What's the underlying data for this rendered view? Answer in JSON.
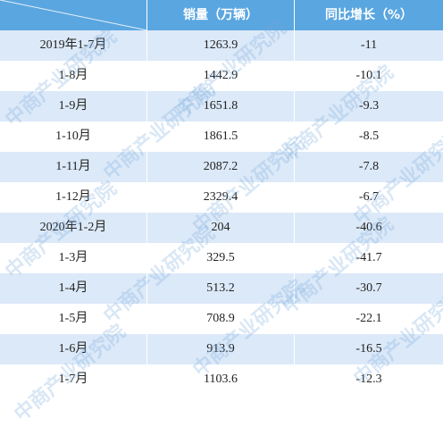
{
  "table": {
    "header": [
      "销量（万辆）",
      "同比增长（%）"
    ],
    "rows": [
      [
        "2019年1-7月",
        "1263.9",
        "-11"
      ],
      [
        "1-8月",
        "1442.9",
        "-10.1"
      ],
      [
        "1-9月",
        "1651.8",
        "-9.3"
      ],
      [
        "1-10月",
        "1861.5",
        "-8.5"
      ],
      [
        "1-11月",
        "2087.2",
        "-7.8"
      ],
      [
        "1-12月",
        "2329.4",
        "-6.7"
      ],
      [
        "2020年1-2月",
        "204",
        "-40.6"
      ],
      [
        "1-3月",
        "329.5",
        "-41.7"
      ],
      [
        "1-4月",
        "513.2",
        "-30.7"
      ],
      [
        "1-5月",
        "708.9",
        "-22.1"
      ],
      [
        "1-6月",
        "913.9",
        "-16.5"
      ],
      [
        "1-7月",
        "1103.6",
        "-12.3"
      ]
    ]
  },
  "watermark": "中商产业研究院"
}
